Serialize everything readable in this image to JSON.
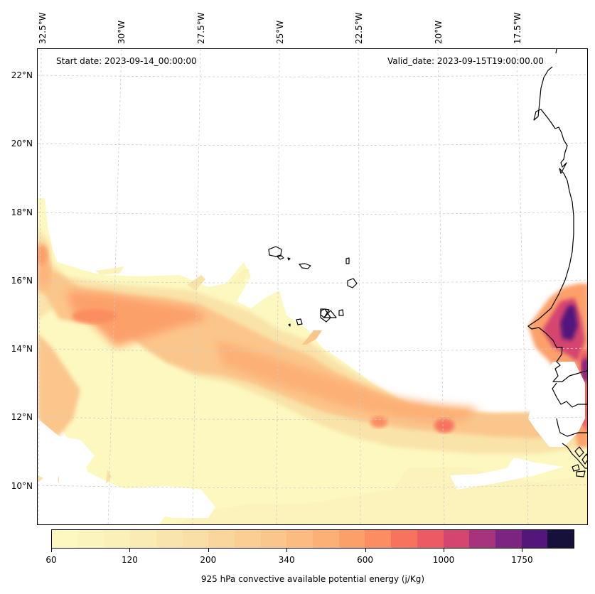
{
  "map": {
    "title_left": "Start date: 2023-09-14_00:00:00",
    "title_right": "Valid_date: 2023-09-15T19:00:00.00",
    "variable": "925 hPa convective available potential energy",
    "units": "j/Kg",
    "region": "Eastern tropical Atlantic / West African coast (Cape Verde, Senegal, Gambia, Guinea-Bissau)",
    "longitude_labels": [
      "32.5°W",
      "30°W",
      "27.5°W",
      "25°W",
      "22.5°W",
      "20°W",
      "17.5°W"
    ],
    "latitude_labels": [
      "22°N",
      "20°N",
      "18°N",
      "16°N",
      "14°N",
      "12°N",
      "10°N"
    ],
    "extent": {
      "lon_min": -32.6,
      "lon_max": -15.7,
      "lat_min": 8.9,
      "lat_max": 22.8
    },
    "gridlines": "dashed light gray",
    "coastlines": true
  },
  "colorbar": {
    "label": "925 hPa convective available potential energy (j/Kg)",
    "orientation": "horizontal",
    "tick_labels": [
      "60",
      "120",
      "200",
      "340",
      "600",
      "1000",
      "1750"
    ],
    "tick_bin_index": [
      0,
      3,
      6,
      9,
      12,
      15,
      18
    ],
    "num_bins": 20,
    "colors": [
      "#fcf8c0",
      "#fbf4bd",
      "#faf0b8",
      "#f9ebb3",
      "#f9e5ac",
      "#f9dfa5",
      "#f9d79c",
      "#fbcf94",
      "#fbc68b",
      "#fcbb80",
      "#fcb076",
      "#fca06a",
      "#fb8d61",
      "#f7735e",
      "#ec5b63",
      "#d44570",
      "#a7337c",
      "#7d2482",
      "#53167b",
      "#16113a"
    ]
  },
  "chart_data": {
    "type": "heatmap",
    "title": "Start date: 2023-09-14_00:00:00 | Valid_date: 2023-09-15T19:00:00.00",
    "xlabel": "Longitude",
    "ylabel": "Latitude",
    "x_ticks": [
      "32.5°W",
      "30°W",
      "27.5°W",
      "25°W",
      "22.5°W",
      "20°W",
      "17.5°W"
    ],
    "y_ticks": [
      "22°N",
      "20°N",
      "18°N",
      "16°N",
      "14°N",
      "12°N",
      "10°N"
    ],
    "colorbar_levels": [
      60,
      120,
      200,
      340,
      600,
      1000,
      1750
    ],
    "colorbar_label": "925 hPa convective available potential energy (j/Kg)",
    "features": [
      {
        "name": "broad CAPE band",
        "description": "SE-oriented band from ~17.5°N,32.5°W to ~11°N,16°W",
        "typical_value_range": [
          120,
          600
        ]
      },
      {
        "name": "max over Senegal",
        "lat": 14.8,
        "lon": -16.0,
        "approx_value": 1750
      },
      {
        "name": "local max",
        "lat": 15.0,
        "lon": -30.3,
        "approx_value": 600
      },
      {
        "name": "local max",
        "lat": 11.8,
        "lon": -20.3,
        "approx_value": 600
      }
    ]
  }
}
